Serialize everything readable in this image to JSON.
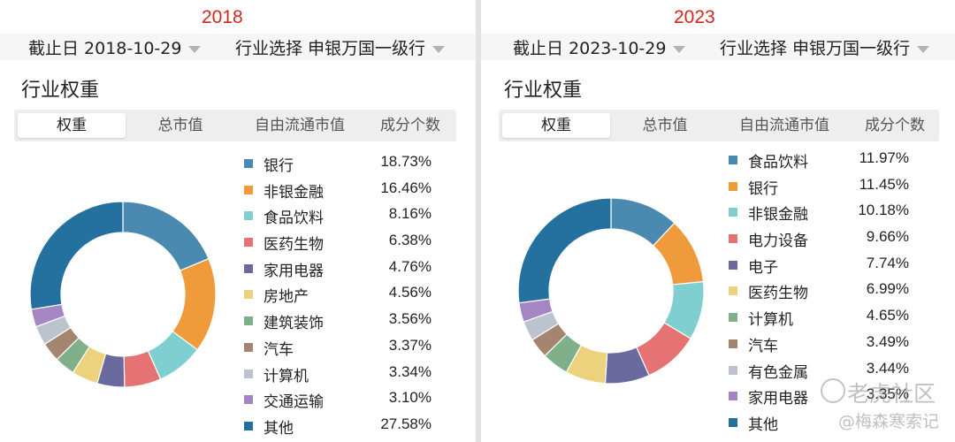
{
  "panels": [
    {
      "year": "2018",
      "filters": {
        "date": "截止日 2018-10-29",
        "industry": "行业选择  申银万国一级行"
      },
      "section_title": "行业权重",
      "tabs": [
        "权重",
        "总市值",
        "自由流通市值",
        "成分个数"
      ]
    },
    {
      "year": "2023",
      "filters": {
        "date": "截止日 2023-10-29",
        "industry": "行业选择  申银万国一级行"
      },
      "section_title": "行业权重",
      "tabs": [
        "权重",
        "总市值",
        "自由流通市值",
        "成分个数"
      ]
    }
  ],
  "colors": {
    "palette": [
      "#4b8ab0",
      "#ef9b3c",
      "#7fcfd0",
      "#e57373",
      "#6a6a9e",
      "#ecd27c",
      "#7fb08a",
      "#a38570",
      "#bcc3cc",
      "#a586c4",
      "#2471a0"
    ]
  },
  "chart_data": [
    {
      "type": "pie",
      "style": "donut",
      "title": "2018",
      "categories": [
        "银行",
        "非银金融",
        "食品饮料",
        "医药生物",
        "家用电器",
        "房地产",
        "建筑装饰",
        "汽车",
        "计算机",
        "交通运输",
        "其他"
      ],
      "values": [
        18.73,
        16.46,
        8.16,
        6.38,
        4.76,
        4.56,
        3.56,
        3.37,
        3.34,
        3.1,
        27.58
      ],
      "labels": [
        "18.73%",
        "16.46%",
        "8.16%",
        "6.38%",
        "4.76%",
        "4.56%",
        "3.56%",
        "3.37%",
        "3.34%",
        "3.10%",
        "27.58%"
      ],
      "unit": "%"
    },
    {
      "type": "pie",
      "style": "donut",
      "title": "2023",
      "categories": [
        "食品饮料",
        "银行",
        "非银金融",
        "电力设备",
        "电子",
        "医药生物",
        "计算机",
        "汽车",
        "有色金属",
        "家用电器",
        "其他"
      ],
      "values": [
        11.97,
        11.45,
        10.18,
        9.66,
        7.74,
        6.99,
        4.65,
        3.49,
        3.44,
        3.35,
        27.08
      ],
      "labels": [
        "11.97%",
        "11.45%",
        "10.18%",
        "9.66%",
        "7.74%",
        "6.99%",
        "4.65%",
        "3.49%",
        "3.44%",
        "3.35%",
        ""
      ],
      "unit": "%"
    }
  ],
  "watermark": {
    "line1": "老虎社区",
    "line2": "@梅森寒索记"
  }
}
